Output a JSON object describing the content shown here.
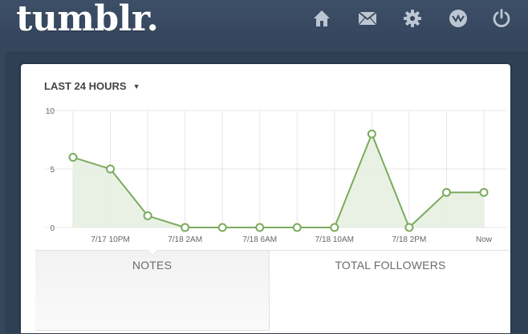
{
  "header": {
    "logo": "tumblr.",
    "nav_icons": [
      "home-icon",
      "inbox-icon",
      "settings-icon",
      "activity-icon",
      "power-icon"
    ]
  },
  "dashboard": {
    "range_label": "LAST 24 HOURS",
    "tabs": [
      {
        "label": "NOTES",
        "selected": true
      },
      {
        "label": "TOTAL FOLLOWERS",
        "selected": false
      }
    ]
  },
  "chart_data": {
    "type": "area",
    "title": "",
    "xlabel": "",
    "ylabel": "",
    "ylim": [
      0,
      10
    ],
    "yticks": [
      0,
      5,
      10
    ],
    "x_tick_labels": [
      "7/17 10PM",
      "7/18 2AM",
      "7/18 6AM",
      "7/18 10AM",
      "7/18 2PM",
      "Now"
    ],
    "series": [
      {
        "name": "Notes",
        "values": [
          6,
          5,
          1,
          0,
          0,
          0,
          0,
          0,
          8,
          0,
          3,
          3
        ]
      }
    ],
    "colors": {
      "line": "#7bab5d",
      "fill": "#e7f0e1",
      "grid": "#e6e6e6",
      "axis_text": "#666666"
    }
  }
}
